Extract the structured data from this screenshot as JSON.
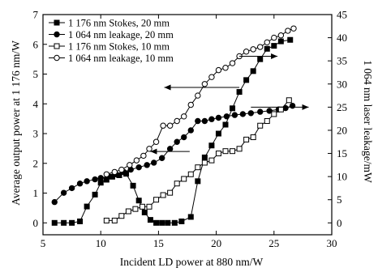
{
  "chart_data": {
    "type": "line",
    "x": {
      "label": "Incident LD power at 880 nm/W",
      "lim": [
        5,
        30
      ],
      "ticks": [
        "5",
        "10",
        "15",
        "20",
        "25",
        "30"
      ]
    },
    "y_left": {
      "label": "Average output power at 1 176 nm/W",
      "lim": [
        -0.4,
        7
      ],
      "ticks": [
        "0",
        "1",
        "2",
        "3",
        "4",
        "5",
        "6",
        "7"
      ]
    },
    "y_right": {
      "label": "1 064 nm laser leakage/mW",
      "lim": [
        -2.57,
        45
      ],
      "ticks": [
        "0",
        "5",
        "10",
        "15",
        "20",
        "25",
        "30",
        "35",
        "40",
        "45"
      ]
    },
    "grid": false,
    "legend_position": "top-left",
    "series": [
      {
        "name": "1 176 nm Stokes, 20 mm",
        "marker": "filled-square",
        "axis": "left",
        "points": [
          [
            6.0,
            0.0
          ],
          [
            6.8,
            0.0
          ],
          [
            7.5,
            0.0
          ],
          [
            8.2,
            0.05
          ],
          [
            8.8,
            0.55
          ],
          [
            9.5,
            0.95
          ],
          [
            10.0,
            1.35
          ],
          [
            10.5,
            1.45
          ],
          [
            11.0,
            1.55
          ],
          [
            11.6,
            1.6
          ],
          [
            12.2,
            1.65
          ],
          [
            12.8,
            1.25
          ],
          [
            13.3,
            0.75
          ],
          [
            13.8,
            0.35
          ],
          [
            14.3,
            0.1
          ],
          [
            14.8,
            0.0
          ],
          [
            15.3,
            0.0
          ],
          [
            15.8,
            0.0
          ],
          [
            16.4,
            0.0
          ],
          [
            17.0,
            0.05
          ],
          [
            17.8,
            0.2
          ],
          [
            18.4,
            1.4
          ],
          [
            19.0,
            2.2
          ],
          [
            19.6,
            2.6
          ],
          [
            20.2,
            3.0
          ],
          [
            20.8,
            3.3
          ],
          [
            21.4,
            3.85
          ],
          [
            22.0,
            4.4
          ],
          [
            22.6,
            4.8
          ],
          [
            23.2,
            5.1
          ],
          [
            23.8,
            5.5
          ],
          [
            24.4,
            5.85
          ],
          [
            25.0,
            5.95
          ],
          [
            25.6,
            6.1
          ],
          [
            26.4,
            6.15
          ]
        ]
      },
      {
        "name": "1 064 nm leakage, 20 mm",
        "marker": "filled-circle",
        "axis": "right",
        "points": [
          [
            6.0,
            4.5
          ],
          [
            6.8,
            6.5
          ],
          [
            7.5,
            7.5
          ],
          [
            8.2,
            8.5
          ],
          [
            8.8,
            9.0
          ],
          [
            9.5,
            9.4
          ],
          [
            10.0,
            9.7
          ],
          [
            10.6,
            10.0
          ],
          [
            11.3,
            10.5
          ],
          [
            12.0,
            11.0
          ],
          [
            12.6,
            11.5
          ],
          [
            13.3,
            12.0
          ],
          [
            14.0,
            12.5
          ],
          [
            14.6,
            13.0
          ],
          [
            15.3,
            14.0
          ],
          [
            16.0,
            16.0
          ],
          [
            16.6,
            17.5
          ],
          [
            17.2,
            18.5
          ],
          [
            17.8,
            20.0
          ],
          [
            18.4,
            22.0
          ],
          [
            19.0,
            22.0
          ],
          [
            19.6,
            22.4
          ],
          [
            20.2,
            22.7
          ],
          [
            20.9,
            23.0
          ],
          [
            21.6,
            23.3
          ],
          [
            22.3,
            23.5
          ],
          [
            23.0,
            23.7
          ],
          [
            23.8,
            24.0
          ],
          [
            24.6,
            24.2
          ],
          [
            25.4,
            24.5
          ],
          [
            26.0,
            24.8
          ],
          [
            26.6,
            25.3
          ]
        ]
      },
      {
        "name": "1 176 nm Stokes, 10 mm",
        "marker": "open-square",
        "axis": "right",
        "points": [
          [
            10.5,
            0.5
          ],
          [
            11.2,
            0.5
          ],
          [
            11.8,
            1.5
          ],
          [
            12.4,
            2.5
          ],
          [
            13.0,
            3.0
          ],
          [
            13.6,
            3.5
          ],
          [
            14.2,
            3.5
          ],
          [
            14.8,
            5.0
          ],
          [
            15.4,
            6.0
          ],
          [
            16.0,
            6.5
          ],
          [
            16.6,
            8.5
          ],
          [
            17.2,
            9.5
          ],
          [
            17.8,
            10.5
          ],
          [
            18.4,
            12.0
          ],
          [
            19.0,
            13.0
          ],
          [
            19.6,
            13.5
          ],
          [
            20.2,
            15.0
          ],
          [
            20.8,
            15.5
          ],
          [
            21.4,
            15.5
          ],
          [
            22.0,
            16.0
          ],
          [
            22.6,
            18.0
          ],
          [
            23.2,
            18.5
          ],
          [
            23.8,
            21.0
          ],
          [
            24.4,
            22.0
          ],
          [
            25.0,
            23.5
          ],
          [
            25.6,
            24.5
          ],
          [
            26.3,
            26.5
          ]
        ]
      },
      {
        "name": "1 064 nm leakage, 10 mm",
        "marker": "open-circle",
        "axis": "right",
        "points": [
          [
            10.5,
            10.5
          ],
          [
            11.2,
            11.0
          ],
          [
            11.8,
            11.5
          ],
          [
            12.5,
            12.5
          ],
          [
            13.1,
            13.5
          ],
          [
            13.7,
            14.5
          ],
          [
            14.2,
            16.0
          ],
          [
            14.8,
            17.5
          ],
          [
            15.4,
            21.0
          ],
          [
            16.0,
            21.0
          ],
          [
            16.6,
            22.0
          ],
          [
            17.2,
            23.0
          ],
          [
            17.8,
            25.5
          ],
          [
            18.4,
            27.5
          ],
          [
            19.0,
            30.0
          ],
          [
            19.6,
            31.5
          ],
          [
            20.2,
            33.0
          ],
          [
            20.8,
            33.5
          ],
          [
            21.4,
            34.5
          ],
          [
            22.0,
            36.0
          ],
          [
            22.6,
            37.0
          ],
          [
            23.2,
            37.5
          ],
          [
            23.8,
            38.0
          ],
          [
            24.4,
            39.0
          ],
          [
            25.0,
            40.0
          ],
          [
            25.6,
            40.5
          ],
          [
            26.2,
            41.5
          ],
          [
            26.7,
            42.0
          ]
        ]
      }
    ],
    "annotations": [
      {
        "type": "arrow",
        "direction": "left",
        "from": [
          22.0,
          4.55
        ],
        "to": [
          15.5,
          4.55
        ],
        "axis": "left"
      },
      {
        "type": "arrow",
        "direction": "left",
        "from": [
          17.7,
          2.4
        ],
        "to": [
          14.3,
          2.4
        ],
        "axis": "left"
      },
      {
        "type": "arrow",
        "direction": "right",
        "from": [
          22.0,
          36.0
        ],
        "to": [
          25.3,
          36.0
        ],
        "axis": "right"
      },
      {
        "type": "arrow",
        "direction": "right",
        "from": [
          23.0,
          25.0
        ],
        "to": [
          28.0,
          25.0
        ],
        "axis": "right"
      }
    ]
  }
}
